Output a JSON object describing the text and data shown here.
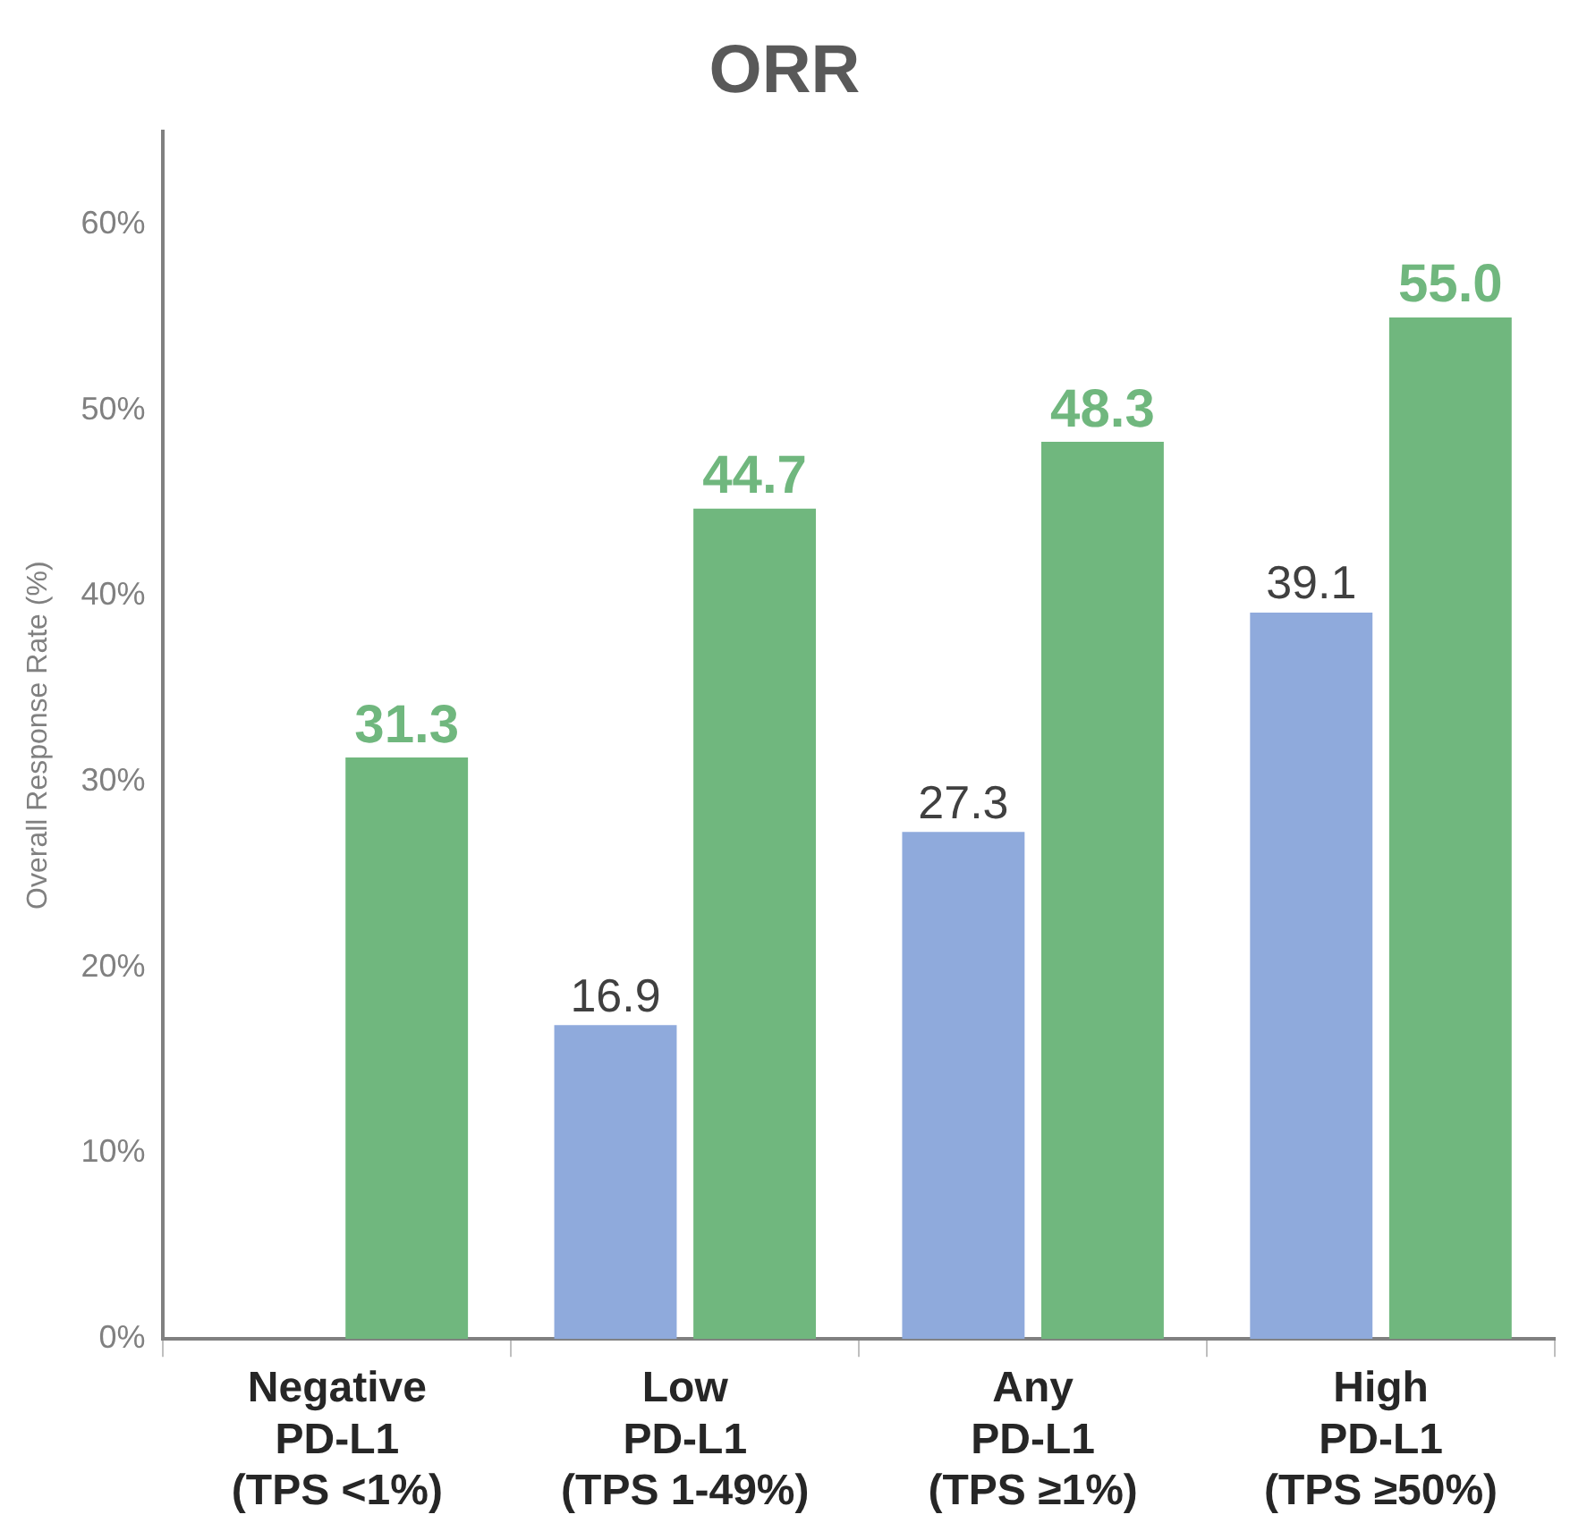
{
  "chart_data": {
    "type": "bar",
    "title": "ORR",
    "ylabel": "Overall Response Rate (%)",
    "categories": [
      "Negative\nPD-L1\n(TPS <1%)",
      "Low\nPD-L1\n(TPS 1-49%)",
      "Any\nPD-L1\n(TPS ≥1%)",
      "High\nPD-L1\n(TPS ≥50%)"
    ],
    "series": [
      {
        "color": "#8faadc",
        "values": [
          null,
          16.9,
          27.3,
          39.1
        ],
        "value_labels": [
          null,
          "16.9",
          "27.3",
          "39.1"
        ]
      },
      {
        "color": "#70b77e",
        "values": [
          31.3,
          44.7,
          48.3,
          55.0
        ],
        "value_labels": [
          "31.3",
          "44.7",
          "48.3",
          "55.0"
        ]
      }
    ],
    "ylim": [
      0,
      65
    ],
    "yticks": [
      {
        "value": 0,
        "label": "0%"
      },
      {
        "value": 10,
        "label": "10%"
      },
      {
        "value": 20,
        "label": "20%"
      },
      {
        "value": 30,
        "label": "30%"
      },
      {
        "value": 40,
        "label": "40%"
      },
      {
        "value": 50,
        "label": "50%"
      },
      {
        "value": 60,
        "label": "60%"
      }
    ],
    "grid": false,
    "legend": false
  }
}
